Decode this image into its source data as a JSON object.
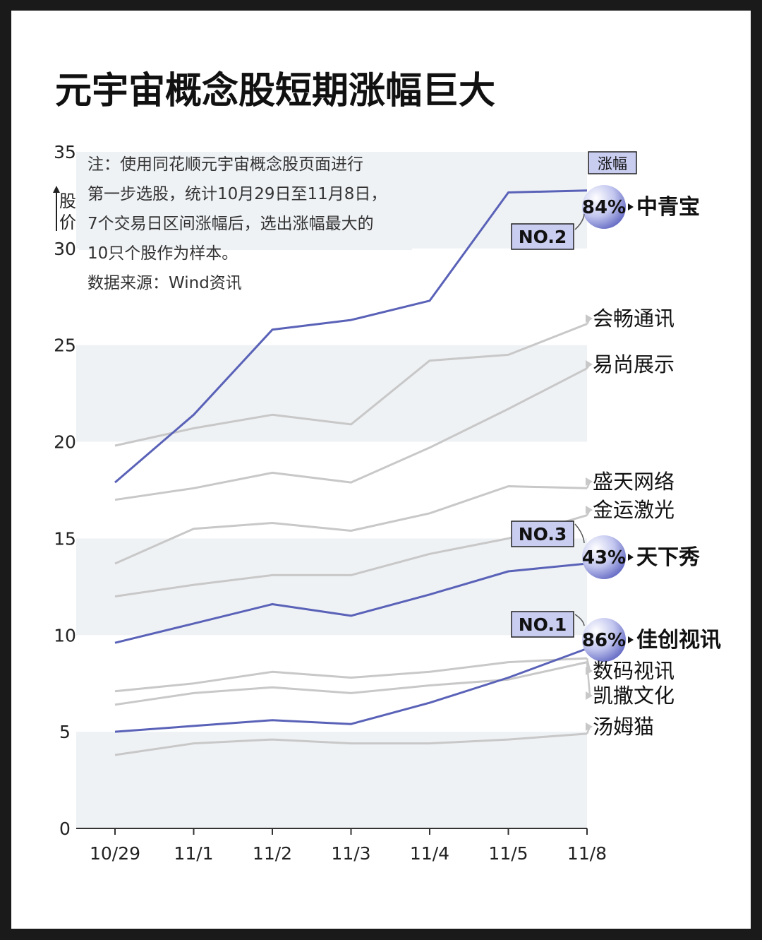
{
  "chart_data": {
    "type": "line",
    "title": "元宇宙概念股短期涨幅巨大",
    "note_lines": [
      "注：使用同花顺元宇宙概念股页面进行",
      "第一步选股，统计10月29日至11月8日，",
      "7个交易日区间涨幅后，选出涨幅最大的",
      "10只个股作为样本。",
      "数据来源：Wind资讯"
    ],
    "ylabel": "股价",
    "legend_label": "涨幅",
    "categories": [
      "10/29",
      "11/1",
      "11/2",
      "11/3",
      "11/4",
      "11/5",
      "11/8"
    ],
    "ylim": [
      0,
      35
    ],
    "yticks": [
      0,
      5,
      10,
      15,
      20,
      25,
      30,
      35
    ],
    "colors": {
      "highlight": "#5a62b8",
      "muted": "#c8c8c8",
      "band": "#eff2f5"
    },
    "series": [
      {
        "name": "中青宝",
        "values": [
          17.9,
          21.4,
          25.8,
          26.3,
          27.3,
          32.9,
          33.0
        ],
        "highlight": true,
        "rank": "NO.2",
        "pct": "84%"
      },
      {
        "name": "会畅通讯",
        "values": [
          19.8,
          20.7,
          21.4,
          20.9,
          24.2,
          24.5,
          26.1
        ],
        "highlight": false
      },
      {
        "name": "易尚展示",
        "values": [
          17.0,
          17.6,
          18.4,
          17.9,
          19.7,
          21.7,
          23.8
        ],
        "highlight": false
      },
      {
        "name": "盛天网络",
        "values": [
          13.7,
          15.5,
          15.8,
          15.4,
          16.3,
          17.7,
          17.6
        ],
        "highlight": false
      },
      {
        "name": "金运激光",
        "values": [
          12.0,
          12.6,
          13.1,
          13.1,
          14.2,
          15.0,
          16.2
        ],
        "highlight": false
      },
      {
        "name": "天下秀",
        "values": [
          9.6,
          10.6,
          11.6,
          11.0,
          12.1,
          13.3,
          13.7
        ],
        "highlight": true,
        "rank": "NO.3",
        "pct": "43%"
      },
      {
        "name": "佳创视讯",
        "values": [
          5.0,
          5.3,
          5.6,
          5.4,
          6.5,
          7.8,
          9.3
        ],
        "highlight": true,
        "rank": "NO.1",
        "pct": "86%"
      },
      {
        "name": "数码视讯",
        "values": [
          7.1,
          7.5,
          8.1,
          7.8,
          8.1,
          8.6,
          8.8
        ],
        "highlight": false
      },
      {
        "name": "凯撒文化",
        "values": [
          6.4,
          7.0,
          7.3,
          7.0,
          7.4,
          7.7,
          8.6
        ],
        "highlight": false
      },
      {
        "name": "汤姆猫",
        "values": [
          3.8,
          4.4,
          4.6,
          4.4,
          4.4,
          4.6,
          4.9
        ],
        "highlight": false
      }
    ]
  }
}
